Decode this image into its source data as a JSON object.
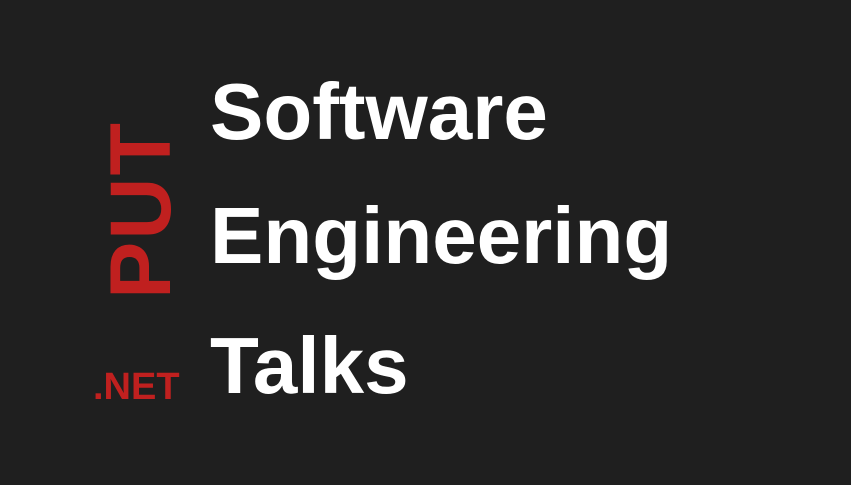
{
  "logo": {
    "vertical_text": "PUT",
    "suffix": ".NET",
    "color": "#c0201f"
  },
  "title": {
    "lines": [
      "Software",
      "Engineering",
      "Talks"
    ],
    "color": "#ffffff"
  },
  "background_color": "#1f1f1f"
}
